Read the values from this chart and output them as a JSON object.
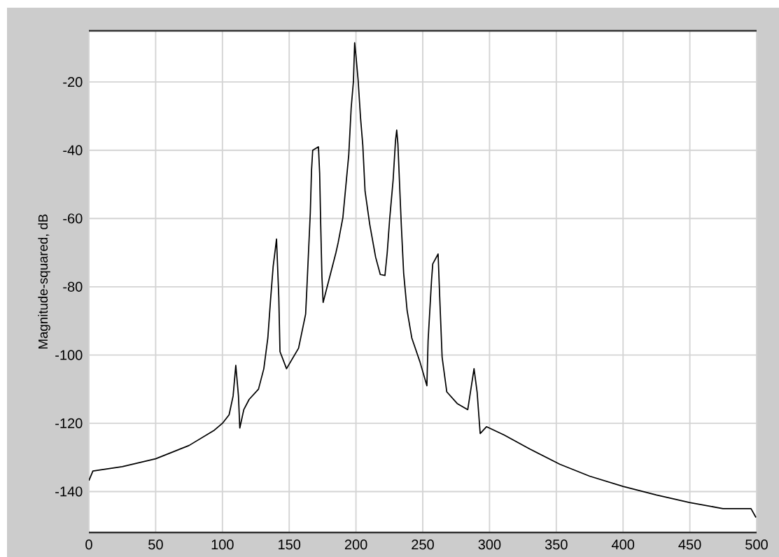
{
  "chart_data": {
    "type": "line",
    "ylabel": "Magnitude-squared, dB",
    "x": [
      0,
      3,
      25,
      50,
      75,
      94,
      100,
      105,
      108,
      110,
      112,
      113,
      116,
      120,
      127,
      131,
      134,
      136,
      138,
      139.6,
      140.5,
      142.2,
      143.1,
      148,
      157,
      162.3,
      163.2,
      165.8,
      166.7,
      167.6,
      171.9,
      172.8,
      173.6,
      174.5,
      175.4,
      185,
      186.7,
      190.2,
      194.6,
      196.4,
      198.1,
      199,
      199.9,
      201.6,
      203.4,
      205.1,
      206.8,
      210.3,
      214.7,
      218.2,
      221.7,
      223.4,
      225.2,
      227.8,
      229.6,
      230.5,
      231.4,
      233.1,
      234,
      235.7,
      238.3,
      241.8,
      247.9,
      253.1,
      254,
      256.6,
      257.5,
      261.5,
      262.7,
      264.5,
      268,
      275.8,
      283.7,
      288.4,
      290.7,
      293,
      297.7,
      310.8,
      330,
      352.7,
      375,
      400,
      425,
      449.7,
      474.8,
      495.8,
      499.5
    ],
    "series": [
      {
        "color": "#000000",
        "values": [
          -136.8,
          -134,
          -132.7,
          -130.4,
          -126.5,
          -122,
          -120,
          -117.5,
          -112,
          -103,
          -112,
          -121.4,
          -116,
          -113,
          -110,
          -104,
          -95,
          -84,
          -74,
          -69,
          -66,
          -83,
          -99,
          -104,
          -98,
          -88,
          -80.7,
          -58.3,
          -46,
          -40,
          -39,
          -46.7,
          -62,
          -77,
          -84.6,
          -70,
          -67,
          -59.7,
          -41.3,
          -27.6,
          -19.8,
          -8.5,
          -12,
          -19.4,
          -30.4,
          -38.5,
          -52,
          -61.7,
          -71.3,
          -76.4,
          -76.7,
          -70,
          -60.3,
          -48.8,
          -37.2,
          -34.1,
          -38.2,
          -54.2,
          -62.4,
          -76,
          -87,
          -95,
          -102,
          -109,
          -95.8,
          -78,
          -73.3,
          -70.4,
          -83,
          -100.6,
          -110.8,
          -114.2,
          -116,
          -104,
          -110.8,
          -123,
          -121,
          -123.4,
          -127.5,
          -132,
          -135.5,
          -138.5,
          -141,
          -143.2,
          -145,
          -145,
          -147.6
        ]
      }
    ],
    "xlim": [
      0,
      500
    ],
    "ylim": [
      -152,
      -5
    ],
    "xticks": [
      0,
      50,
      100,
      150,
      200,
      250,
      300,
      350,
      400,
      450,
      500
    ],
    "yticks": [
      -140,
      -120,
      -100,
      -80,
      -60,
      -40,
      -20
    ],
    "grid": true,
    "line_style": "solid"
  }
}
